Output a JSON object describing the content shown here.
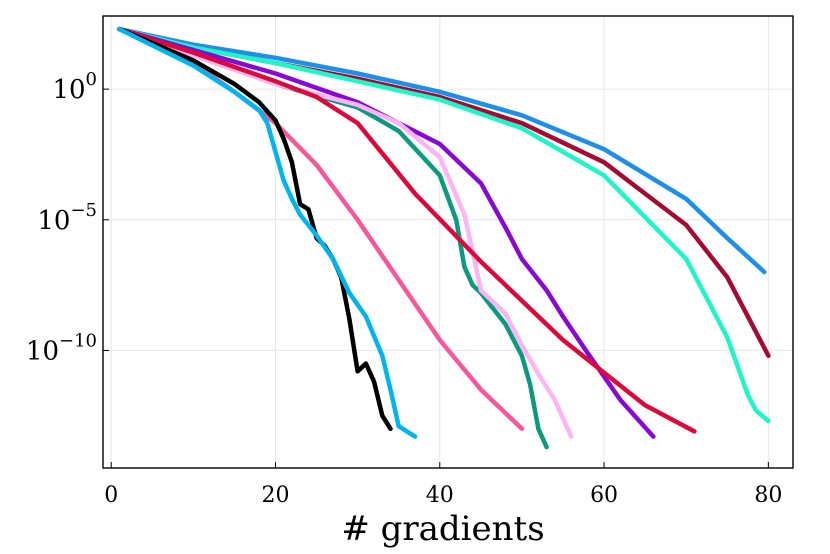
{
  "chart_data": {
    "type": "line",
    "title": "",
    "xlabel": "# gradients",
    "ylabel": "",
    "yscale": "log10",
    "xlim": [
      -1,
      83
    ],
    "ylim_log10": [
      -14.5,
      2.8
    ],
    "x_ticks": [
      0,
      20,
      40,
      60,
      80
    ],
    "x_tick_labels": [
      "0",
      "20",
      "40",
      "60",
      "80"
    ],
    "y_ticks_log10": [
      0,
      -5,
      -10
    ],
    "y_tick_labels": [
      {
        "base": "10",
        "exp": "0"
      },
      {
        "base": "10",
        "exp": "−5"
      },
      {
        "base": "10",
        "exp": "−10"
      }
    ],
    "grid": true,
    "legend": "none",
    "series": [
      {
        "name": "series-blue",
        "color": "#1e8fe8",
        "x": [
          1,
          10,
          20,
          30,
          40,
          50,
          60,
          70,
          75,
          79.5
        ],
        "log10_y": [
          2.3,
          1.7,
          1.2,
          0.6,
          -0.1,
          -1.0,
          -2.3,
          -4.2,
          -5.7,
          -7.0
        ]
      },
      {
        "name": "series-darkred",
        "color": "#a50a32",
        "x": [
          1,
          10,
          20,
          30,
          40,
          50,
          60,
          70,
          75,
          80
        ],
        "log10_y": [
          2.3,
          1.6,
          1.0,
          0.4,
          -0.3,
          -1.3,
          -2.8,
          -5.2,
          -7.2,
          -10.2
        ]
      },
      {
        "name": "series-aqua",
        "color": "#1ef5c8",
        "x": [
          1,
          10,
          20,
          30,
          40,
          50,
          60,
          70,
          75,
          77.5,
          78.5,
          80
        ],
        "log10_y": [
          2.3,
          1.6,
          1.0,
          0.3,
          -0.4,
          -1.5,
          -3.3,
          -6.5,
          -9.5,
          -11.7,
          -12.3,
          -12.7
        ]
      },
      {
        "name": "series-purple",
        "color": "#8a08d4",
        "x": [
          1,
          10,
          20,
          30,
          40,
          45,
          48,
          50,
          53,
          55,
          58,
          62,
          66
        ],
        "log10_y": [
          2.3,
          1.5,
          0.6,
          -0.5,
          -2.1,
          -3.6,
          -5.3,
          -6.5,
          -7.7,
          -8.7,
          -10.1,
          -11.9,
          -13.3
        ]
      },
      {
        "name": "series-teal",
        "color": "#0a9a7e",
        "x": [
          1,
          10,
          20,
          30,
          35,
          40,
          42,
          43,
          44,
          45,
          48,
          50,
          51,
          52,
          53
        ],
        "log10_y": [
          2.3,
          1.3,
          0.2,
          -0.7,
          -1.6,
          -3.3,
          -5.0,
          -6.8,
          -7.5,
          -7.8,
          -9.0,
          -10.2,
          -11.3,
          -13.0,
          -13.7
        ]
      },
      {
        "name": "series-lightpink",
        "color": "#fcb4f5",
        "x": [
          1,
          10,
          20,
          30,
          35,
          40,
          43,
          44,
          45,
          48,
          50,
          52,
          54,
          56
        ],
        "log10_y": [
          2.3,
          1.3,
          0.2,
          -0.6,
          -1.3,
          -2.6,
          -4.8,
          -6.2,
          -7.7,
          -8.6,
          -9.8,
          -10.9,
          -11.9,
          -13.3
        ]
      },
      {
        "name": "series-pink",
        "color": "#f7569a",
        "x": [
          1,
          10,
          15,
          20,
          25,
          30,
          35,
          40,
          45,
          50
        ],
        "log10_y": [
          2.3,
          1.0,
          -0.1,
          -1.3,
          -2.9,
          -5.0,
          -7.3,
          -9.6,
          -11.5,
          -13.0
        ]
      },
      {
        "name": "series-crimson",
        "color": "#dc0a3c",
        "x": [
          1,
          10,
          20,
          25,
          30,
          37,
          45,
          55,
          65,
          71
        ],
        "log10_y": [
          2.3,
          1.4,
          0.3,
          -0.3,
          -1.3,
          -4.0,
          -6.6,
          -9.6,
          -12.1,
          -13.1
        ]
      },
      {
        "name": "series-black",
        "color": "#000000",
        "x": [
          1,
          10,
          15,
          18,
          20,
          21,
          22,
          23,
          24,
          25,
          26,
          27,
          28,
          29,
          30,
          31,
          32,
          33,
          34
        ],
        "log10_y": [
          2.3,
          1.1,
          0.2,
          -0.5,
          -1.2,
          -1.9,
          -2.8,
          -4.4,
          -4.6,
          -5.7,
          -6.0,
          -6.5,
          -7.2,
          -8.8,
          -10.8,
          -10.5,
          -11.2,
          -12.5,
          -13.0
        ]
      },
      {
        "name": "series-skyblue",
        "color": "#00b4ef",
        "x": [
          1,
          10,
          15,
          18,
          19,
          20,
          21,
          22,
          23,
          25,
          27,
          29,
          31,
          33,
          34,
          35,
          37
        ],
        "log10_y": [
          2.3,
          0.9,
          -0.1,
          -0.8,
          -1.3,
          -2.4,
          -3.5,
          -4.2,
          -4.8,
          -5.6,
          -6.5,
          -7.8,
          -8.7,
          -10.2,
          -11.5,
          -12.9,
          -13.3
        ]
      }
    ]
  }
}
